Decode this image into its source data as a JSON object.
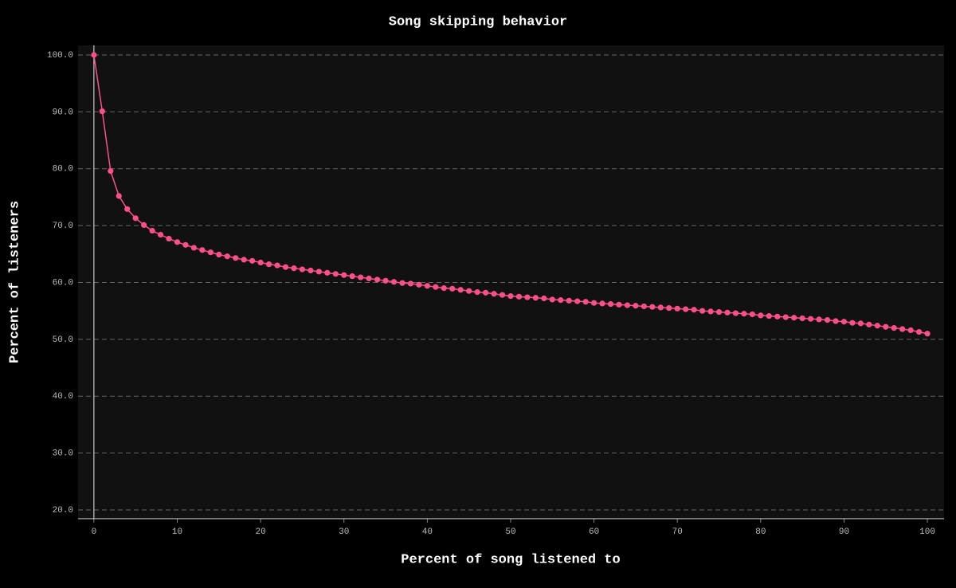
{
  "chart_data": {
    "type": "line",
    "title": "Song skipping behavior",
    "x_label": "Percent of song listened to",
    "y_label": "Percent of listeners",
    "x": [
      0,
      1,
      2,
      3,
      4,
      5,
      6,
      7,
      8,
      9,
      10,
      11,
      12,
      13,
      14,
      15,
      16,
      17,
      18,
      19,
      20,
      21,
      22,
      23,
      24,
      25,
      26,
      27,
      28,
      29,
      30,
      31,
      32,
      33,
      34,
      35,
      36,
      37,
      38,
      39,
      40,
      41,
      42,
      43,
      44,
      45,
      46,
      47,
      48,
      49,
      50,
      51,
      52,
      53,
      54,
      55,
      56,
      57,
      58,
      59,
      60,
      61,
      62,
      63,
      64,
      65,
      66,
      67,
      68,
      69,
      70,
      71,
      72,
      73,
      74,
      75,
      76,
      77,
      78,
      79,
      80,
      81,
      82,
      83,
      84,
      85,
      86,
      87,
      88,
      89,
      90,
      91,
      92,
      93,
      94,
      95,
      96,
      97,
      98,
      99,
      100
    ],
    "series": [
      {
        "color": "#ff4f8b",
        "values": [
          100,
          90.1,
          79.6,
          75.2,
          72.9,
          71.3,
          70.1,
          69.1,
          68.4,
          67.7,
          67.1,
          66.6,
          66.1,
          65.7,
          65.3,
          64.9,
          64.6,
          64.3,
          64.0,
          63.8,
          63.5,
          63.2,
          63.0,
          62.7,
          62.5,
          62.3,
          62.1,
          61.9,
          61.7,
          61.5,
          61.3,
          61.1,
          60.9,
          60.7,
          60.5,
          60.3,
          60.1,
          59.9,
          59.8,
          59.6,
          59.4,
          59.2,
          59.0,
          58.9,
          58.7,
          58.5,
          58.3,
          58.2,
          58.0,
          57.8,
          57.6,
          57.5,
          57.4,
          57.3,
          57.2,
          57.0,
          56.9,
          56.8,
          56.7,
          56.6,
          56.4,
          56.3,
          56.2,
          56.1,
          56.0,
          55.9,
          55.8,
          55.7,
          55.6,
          55.5,
          55.4,
          55.3,
          55.2,
          55.0,
          54.9,
          54.8,
          54.7,
          54.6,
          54.5,
          54.4,
          54.2,
          54.1,
          54.0,
          53.9,
          53.8,
          53.7,
          53.6,
          53.5,
          53.4,
          53.2,
          53.1,
          52.9,
          52.8,
          52.6,
          52.4,
          52.2,
          52.0,
          51.8,
          51.6,
          51.3,
          51.0
        ]
      }
    ],
    "xlim": [
      -1.9,
      102
    ],
    "ylim": [
      18.46,
      101.68
    ],
    "xticks": [
      0,
      10,
      20,
      30,
      40,
      50,
      60,
      70,
      80,
      90,
      100
    ],
    "yticks": [
      {
        "value": 20,
        "label": "20.0"
      },
      {
        "value": 30,
        "label": "30.0"
      },
      {
        "value": 40,
        "label": "40.0"
      },
      {
        "value": 50,
        "label": "50.0"
      },
      {
        "value": 60,
        "label": "60.0"
      },
      {
        "value": 70,
        "label": "70.0"
      },
      {
        "value": 80,
        "label": "80.0"
      },
      {
        "value": 90,
        "label": "90.0"
      },
      {
        "value": 100,
        "label": "100.0"
      }
    ],
    "grid": true
  }
}
